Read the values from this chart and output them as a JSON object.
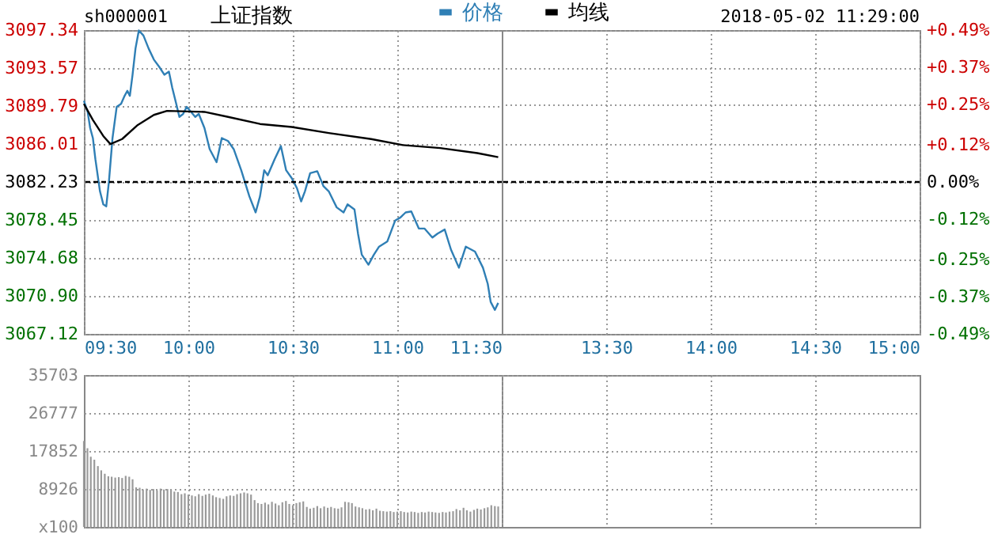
{
  "chart_data": [
    {
      "type": "line",
      "title": "上证指数",
      "annotations": [
        "sh000001"
      ],
      "series": [
        {
          "name": "价格",
          "color": "#2f7fb5",
          "x": [
            9.5,
            9.518,
            9.53,
            9.543,
            9.555,
            9.577,
            9.593,
            9.607,
            9.62,
            9.637,
            9.657,
            9.678,
            9.695,
            9.708,
            9.72,
            9.733,
            9.747,
            9.763,
            9.785,
            9.81,
            9.835,
            9.86,
            9.885,
            9.907,
            9.923,
            9.942,
            9.957,
            9.975,
            9.992,
            10.013,
            10.033,
            10.05,
            10.077,
            10.102,
            10.135,
            10.16,
            10.19,
            10.217,
            10.253,
            10.292,
            10.322,
            10.343,
            10.363,
            10.38,
            10.413,
            10.443,
            10.468,
            10.495,
            10.52,
            10.54,
            10.558,
            10.583,
            10.617,
            10.647,
            10.672,
            10.71,
            10.743,
            10.762,
            10.795,
            10.812,
            10.83,
            10.862,
            10.888,
            10.913,
            10.952,
            10.99,
            11.015,
            11.04,
            11.067,
            11.103,
            11.13,
            11.168,
            11.193,
            11.227,
            11.257,
            11.295,
            11.328,
            11.372,
            11.41,
            11.433,
            11.447,
            11.467,
            11.483
          ],
          "values": [
            3090.3,
            3089.2,
            3087.6,
            3086.6,
            3084.5,
            3081.3,
            3080.0,
            3079.8,
            3082.3,
            3086.6,
            3089.7,
            3090.0,
            3090.8,
            3091.3,
            3090.8,
            3092.9,
            3095.5,
            3097.3,
            3096.8,
            3095.5,
            3094.4,
            3093.7,
            3092.9,
            3093.2,
            3091.6,
            3090.0,
            3088.7,
            3089.0,
            3089.7,
            3089.2,
            3088.7,
            3089.0,
            3087.6,
            3085.5,
            3084.2,
            3086.6,
            3086.3,
            3085.5,
            3083.4,
            3080.8,
            3079.2,
            3080.8,
            3083.4,
            3082.9,
            3084.5,
            3085.8,
            3083.4,
            3082.6,
            3081.6,
            3080.3,
            3081.3,
            3083.1,
            3083.3,
            3081.8,
            3081.3,
            3079.7,
            3079.2,
            3080.0,
            3079.5,
            3077.1,
            3075.0,
            3074.0,
            3075.0,
            3075.8,
            3076.3,
            3078.4,
            3078.7,
            3079.2,
            3079.3,
            3077.6,
            3077.6,
            3076.7,
            3077.1,
            3077.5,
            3075.5,
            3073.7,
            3075.8,
            3075.3,
            3073.7,
            3072.1,
            3070.3,
            3069.5,
            3070.2
          ]
        },
        {
          "name": "均线",
          "color": "#000000",
          "x": [
            9.5,
            9.543,
            9.593,
            9.627,
            9.683,
            9.758,
            9.835,
            9.898,
            10.077,
            10.19,
            10.343,
            10.495,
            10.672,
            10.875,
            11.027,
            11.205,
            11.383,
            11.483
          ],
          "values": [
            3090.0,
            3088.4,
            3086.8,
            3086.0,
            3086.5,
            3087.9,
            3088.9,
            3089.3,
            3089.2,
            3088.7,
            3088.0,
            3087.7,
            3087.1,
            3086.5,
            3085.9,
            3085.6,
            3085.1,
            3084.7
          ]
        }
      ],
      "xlim": [
        9.5,
        11.5
      ],
      "xticks": [
        {
          "value": 9.5,
          "label": "09:30"
        },
        {
          "value": 10,
          "label": "10:00"
        },
        {
          "value": 10.5,
          "label": "10:30"
        },
        {
          "value": 11,
          "label": "11:00"
        },
        {
          "value": 11.5,
          "label": "11:30"
        }
      ],
      "ylim": [
        3067.12,
        3097.34
      ],
      "yticks": [
        3067.12,
        {
          "value": 3070.9,
          "label": "3070.90"
        },
        3074.68,
        3078.45,
        3082.23,
        3086.01,
        3089.79,
        3093.57,
        3097.34
      ],
      "ref_lines": [
        {
          "axis": "y",
          "value": 3082.23,
          "color": "#000000",
          "line_style": "dashed"
        }
      ],
      "grid": true,
      "legend": "top",
      "line_style": "solid"
    },
    {
      "type": "line",
      "annotations": [
        "2018-05-02 11:29:00"
      ],
      "xlim": [
        13,
        15
      ],
      "xticks": [
        {
          "value": 13.5,
          "label": "13:30"
        },
        {
          "value": 14,
          "label": "14:00"
        },
        {
          "value": 14.5,
          "label": "14:30"
        },
        {
          "value": 15,
          "label": "15:00"
        }
      ],
      "y2lim": [
        -0.49,
        0.49
      ],
      "y2ticks": [
        {
          "value": -0.49,
          "label": "-0.49%"
        },
        {
          "value": -0.37,
          "label": "-0.37%"
        },
        {
          "value": -0.25,
          "label": "-0.25%"
        },
        {
          "value": -0.12,
          "label": "-0.12%"
        },
        {
          "value": 0,
          "label": "0.00%"
        },
        {
          "value": 0.12,
          "label": "+0.12%"
        },
        {
          "value": 0.25,
          "label": "+0.25%"
        },
        {
          "value": 0.37,
          "label": "+0.37%"
        },
        {
          "value": 0.49,
          "label": "+0.49%"
        }
      ],
      "ref_lines": [
        {
          "axis": "y2",
          "value": 0,
          "color": "#000000",
          "line_style": "dashed"
        }
      ],
      "grid": true
    },
    {
      "type": "bar",
      "color": "#9a9a9a",
      "x": [
        9.5,
        9.517,
        9.533,
        9.55,
        9.567,
        9.583,
        9.6,
        9.617,
        9.633,
        9.65,
        9.667,
        9.683,
        9.7,
        9.717,
        9.733,
        9.75,
        9.767,
        9.783,
        9.8,
        9.817,
        9.833,
        9.85,
        9.867,
        9.883,
        9.9,
        9.917,
        9.933,
        9.95,
        9.967,
        9.983,
        10.0,
        10.017,
        10.033,
        10.05,
        10.067,
        10.083,
        10.1,
        10.117,
        10.133,
        10.15,
        10.167,
        10.183,
        10.2,
        10.217,
        10.233,
        10.25,
        10.267,
        10.283,
        10.3,
        10.317,
        10.333,
        10.35,
        10.367,
        10.383,
        10.4,
        10.417,
        10.433,
        10.45,
        10.467,
        10.483,
        10.5,
        10.517,
        10.533,
        10.55,
        10.567,
        10.583,
        10.6,
        10.617,
        10.633,
        10.65,
        10.667,
        10.683,
        10.7,
        10.717,
        10.733,
        10.75,
        10.767,
        10.783,
        10.8,
        10.817,
        10.833,
        10.85,
        10.867,
        10.883,
        10.9,
        10.917,
        10.933,
        10.95,
        10.967,
        10.983,
        11.0,
        11.017,
        11.033,
        11.05,
        11.067,
        11.083,
        11.1,
        11.117,
        11.133,
        11.15,
        11.167,
        11.183,
        11.2,
        11.217,
        11.233,
        11.25,
        11.267,
        11.283,
        11.3,
        11.317,
        11.333,
        11.35,
        11.367,
        11.383,
        11.4,
        11.417,
        11.433,
        11.45,
        11.467,
        11.483
      ],
      "values": [
        20200,
        18500,
        16500,
        15800,
        14300,
        13300,
        12500,
        11900,
        11800,
        11600,
        11700,
        11500,
        12000,
        11800,
        11200,
        9300,
        9200,
        8800,
        9000,
        8700,
        8900,
        8600,
        9000,
        8800,
        8900,
        8700,
        8300,
        8200,
        7700,
        7900,
        7600,
        7400,
        7200,
        7700,
        7300,
        7600,
        7800,
        7400,
        7000,
        6800,
        6600,
        7200,
        7400,
        7300,
        7700,
        7900,
        8100,
        7900,
        7600,
        6300,
        5600,
        5400,
        5700,
        5300,
        5900,
        5500,
        5100,
        5800,
        6100,
        5400,
        5100,
        5600,
        5800,
        6000,
        4700,
        4300,
        4500,
        4900,
        4400,
        4800,
        4500,
        4700,
        4400,
        4300,
        4600,
        5900,
        5800,
        5600,
        4800,
        4600,
        4400,
        4100,
        4200,
        3900,
        4300,
        3800,
        3700,
        3600,
        3700,
        3500,
        3600,
        3700,
        3500,
        3400,
        3600,
        3500,
        3300,
        3500,
        3400,
        3600,
        3500,
        3400,
        3300,
        3500,
        3400,
        3600,
        3700,
        4200,
        3900,
        4500,
        3900,
        3600,
        4000,
        4300,
        4100,
        4400,
        4600,
        5100,
        4900,
        4800
      ],
      "xlim": [
        9.5,
        11.5
      ],
      "xticks": [
        {
          "value": 10,
          "label": null
        },
        {
          "value": 10.5,
          "label": null
        },
        {
          "value": 11,
          "label": null
        }
      ],
      "ylim": [
        0,
        35703
      ],
      "yticks": [
        {
          "value": 0,
          "label": "x100"
        },
        8926,
        17852,
        26777,
        35703
      ],
      "grid": true,
      "tick_labels": "y"
    },
    {
      "type": "bar",
      "color": "#9a9a9a",
      "xlim": [
        13,
        15
      ],
      "xticks": [
        {
          "value": 13,
          "label": null
        },
        {
          "value": 13.5,
          "label": null
        },
        {
          "value": 14,
          "label": null
        },
        {
          "value": 14.5,
          "label": null
        }
      ],
      "ylim": [
        0,
        35703
      ],
      "yticks": [
        8926,
        17852,
        26777,
        35703
      ],
      "grid": true,
      "tick_labels": false
    }
  ]
}
